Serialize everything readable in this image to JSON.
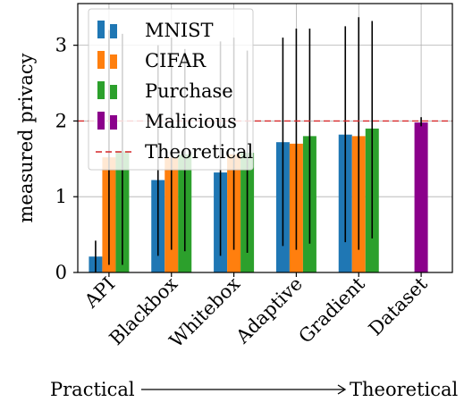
{
  "chart_data": {
    "type": "bar",
    "categories": [
      "API",
      "Blackbox",
      "Whitebox",
      "Adaptive",
      "Gradient",
      "Dataset"
    ],
    "series": [
      {
        "name": "MNIST",
        "color": "#1f77b4",
        "values": [
          0.21,
          1.22,
          1.32,
          1.72,
          1.82,
          null
        ],
        "err_low": [
          0.0,
          0.22,
          0.22,
          0.35,
          0.4,
          null
        ],
        "err_high": [
          0.42,
          3.0,
          3.05,
          3.1,
          3.25,
          null
        ]
      },
      {
        "name": "CIFAR",
        "color": "#ff7f0e",
        "values": [
          1.52,
          1.52,
          1.56,
          1.7,
          1.8,
          null
        ],
        "err_low": [
          0.1,
          0.3,
          0.3,
          0.3,
          0.3,
          null
        ],
        "err_high": [
          3.2,
          3.1,
          3.1,
          3.22,
          3.37,
          null
        ]
      },
      {
        "name": "Purchase",
        "color": "#2ca02c",
        "values": [
          1.6,
          1.56,
          1.58,
          1.8,
          1.9,
          null
        ],
        "err_low": [
          0.1,
          0.28,
          0.26,
          0.38,
          0.45,
          null
        ],
        "err_high": [
          3.15,
          2.95,
          2.93,
          3.22,
          3.32,
          null
        ]
      },
      {
        "name": "Malicious",
        "color": "#8b008b",
        "values": [
          null,
          null,
          null,
          null,
          null,
          1.98
        ],
        "err_low": [
          null,
          null,
          null,
          null,
          null,
          1.93
        ],
        "err_high": [
          null,
          null,
          null,
          null,
          null,
          2.05
        ]
      }
    ],
    "reference_line": {
      "name": "Theoretical",
      "value": 2.0,
      "color": "#d62728",
      "style": "dashed"
    },
    "ylabel": "measured privacy",
    "yticks": [
      "0",
      "1",
      "2",
      "3"
    ],
    "ylim": [
      0,
      3.55
    ],
    "grid": true,
    "legend_position": "top-left",
    "footer": {
      "left": "Practical",
      "right": "Theoretical"
    }
  }
}
